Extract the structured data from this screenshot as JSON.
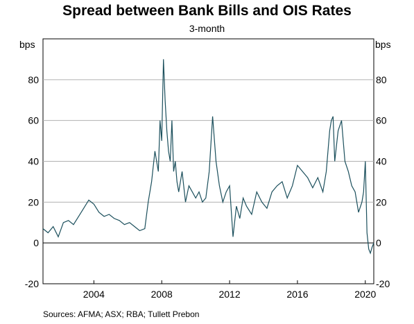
{
  "title": "Spread between Bank Bills and OIS Rates",
  "subtitle": "3-month",
  "unit_left": "bps",
  "unit_right": "bps",
  "sources": "Sources:   AFMA; ASX; RBA; Tullett Prebon",
  "colors": {
    "series": "#1b4f5c",
    "grid": "#b0b0b0",
    "zero_line": "#000000"
  },
  "chart_data": {
    "type": "line",
    "title": "Spread between Bank Bills and OIS Rates",
    "subtitle": "3-month",
    "ylabel": "bps",
    "ylim": [
      -20,
      100
    ],
    "yticks": [
      -20,
      0,
      20,
      40,
      60,
      80
    ],
    "xlim": [
      2001.0,
      2020.5
    ],
    "xticks": [
      2004,
      2008,
      2012,
      2016,
      2020
    ],
    "grid": true,
    "series": [
      {
        "x": [
          2001.0,
          2001.3,
          2001.6,
          2001.9,
          2002.2,
          2002.5,
          2002.8,
          2003.1,
          2003.4,
          2003.7,
          2004.0,
          2004.3,
          2004.6,
          2004.9,
          2005.2,
          2005.5,
          2005.8,
          2006.1,
          2006.4,
          2006.7,
          2007.0,
          2007.2,
          2007.4,
          2007.6,
          2007.8,
          2007.9,
          2008.0,
          2008.1,
          2008.2,
          2008.3,
          2008.4,
          2008.5,
          2008.6,
          2008.7,
          2008.8,
          2008.9,
          2009.0,
          2009.2,
          2009.4,
          2009.6,
          2009.8,
          2010.0,
          2010.2,
          2010.4,
          2010.6,
          2010.8,
          2011.0,
          2011.2,
          2011.4,
          2011.6,
          2011.8,
          2012.0,
          2012.2,
          2012.4,
          2012.6,
          2012.8,
          2013.0,
          2013.3,
          2013.6,
          2013.9,
          2014.2,
          2014.5,
          2014.8,
          2015.1,
          2015.4,
          2015.7,
          2016.0,
          2016.3,
          2016.6,
          2016.9,
          2017.2,
          2017.5,
          2017.7,
          2017.9,
          2018.0,
          2018.1,
          2018.2,
          2018.4,
          2018.6,
          2018.8,
          2019.0,
          2019.2,
          2019.4,
          2019.6,
          2019.8,
          2019.9,
          2020.0,
          2020.1,
          2020.2,
          2020.3,
          2020.4,
          2020.5
        ],
        "y": [
          7,
          5,
          8,
          3,
          10,
          11,
          9,
          13,
          17,
          21,
          19,
          15,
          13,
          14,
          12,
          11,
          9,
          10,
          8,
          6,
          7,
          20,
          30,
          45,
          35,
          60,
          50,
          90,
          70,
          55,
          45,
          40,
          60,
          35,
          40,
          30,
          25,
          35,
          20,
          28,
          25,
          22,
          25,
          20,
          22,
          35,
          62,
          40,
          28,
          20,
          25,
          28,
          3,
          18,
          12,
          22,
          18,
          14,
          25,
          20,
          17,
          25,
          28,
          30,
          22,
          28,
          38,
          35,
          32,
          27,
          32,
          25,
          35,
          55,
          60,
          62,
          40,
          55,
          60,
          40,
          35,
          28,
          25,
          15,
          20,
          25,
          40,
          5,
          -3,
          -5,
          -2,
          0
        ]
      }
    ]
  }
}
